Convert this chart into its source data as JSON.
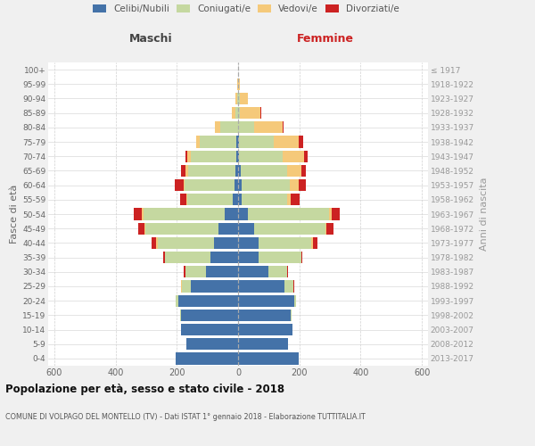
{
  "age_groups": [
    "0-4",
    "5-9",
    "10-14",
    "15-19",
    "20-24",
    "25-29",
    "30-34",
    "35-39",
    "40-44",
    "45-49",
    "50-54",
    "55-59",
    "60-64",
    "65-69",
    "70-74",
    "75-79",
    "80-84",
    "85-89",
    "90-94",
    "95-99",
    "100+"
  ],
  "birth_years": [
    "2013-2017",
    "2008-2012",
    "2003-2007",
    "1998-2002",
    "1993-1997",
    "1988-1992",
    "1983-1987",
    "1978-1982",
    "1973-1977",
    "1968-1972",
    "1963-1967",
    "1958-1962",
    "1953-1957",
    "1948-1952",
    "1943-1947",
    "1938-1942",
    "1933-1937",
    "1928-1932",
    "1923-1927",
    "1918-1922",
    "≤ 1917"
  ],
  "male_celibi": [
    205,
    170,
    185,
    185,
    195,
    155,
    105,
    90,
    80,
    65,
    45,
    18,
    12,
    8,
    5,
    5,
    0,
    0,
    0,
    0,
    0
  ],
  "male_coniugati": [
    0,
    0,
    0,
    4,
    8,
    28,
    68,
    150,
    183,
    238,
    265,
    148,
    162,
    155,
    148,
    120,
    58,
    8,
    4,
    1,
    0
  ],
  "male_vedovi": [
    0,
    0,
    0,
    0,
    0,
    4,
    0,
    0,
    4,
    4,
    4,
    4,
    4,
    8,
    12,
    12,
    18,
    12,
    4,
    1,
    0
  ],
  "male_divorziati": [
    0,
    0,
    0,
    0,
    0,
    0,
    4,
    5,
    14,
    18,
    28,
    18,
    28,
    14,
    8,
    0,
    0,
    0,
    0,
    0,
    0
  ],
  "female_celibi": [
    198,
    162,
    178,
    172,
    182,
    152,
    98,
    68,
    68,
    52,
    32,
    12,
    12,
    8,
    4,
    4,
    1,
    1,
    1,
    0,
    0
  ],
  "female_coniugati": [
    0,
    0,
    0,
    4,
    8,
    28,
    62,
    138,
    172,
    232,
    265,
    148,
    158,
    152,
    142,
    112,
    52,
    4,
    4,
    1,
    0
  ],
  "female_vedovi": [
    0,
    0,
    0,
    0,
    0,
    0,
    0,
    0,
    4,
    4,
    8,
    12,
    28,
    48,
    68,
    82,
    92,
    68,
    28,
    4,
    0
  ],
  "female_divorziati": [
    0,
    0,
    0,
    0,
    0,
    4,
    4,
    4,
    14,
    22,
    28,
    28,
    22,
    12,
    14,
    14,
    4,
    4,
    0,
    0,
    0
  ],
  "colors": {
    "celibi": "#4472a8",
    "coniugati": "#c5d8a0",
    "vedovi": "#f5c97a",
    "divorziati": "#cc2222"
  },
  "xlim": 620,
  "title": "Popolazione per età, sesso e stato civile - 2018",
  "subtitle": "COMUNE DI VOLPAGO DEL MONTELLO (TV) - Dati ISTAT 1° gennaio 2018 - Elaborazione TUTTITALIA.IT",
  "ylabel_left": "Fasce di età",
  "ylabel_right": "Anni di nascita",
  "xlabel_left": "Maschi",
  "xlabel_right": "Femmine",
  "bg_color": "#f0f0f0",
  "plot_bg": "#ffffff",
  "xticks": [
    600,
    400,
    200,
    0,
    200,
    400,
    600
  ]
}
